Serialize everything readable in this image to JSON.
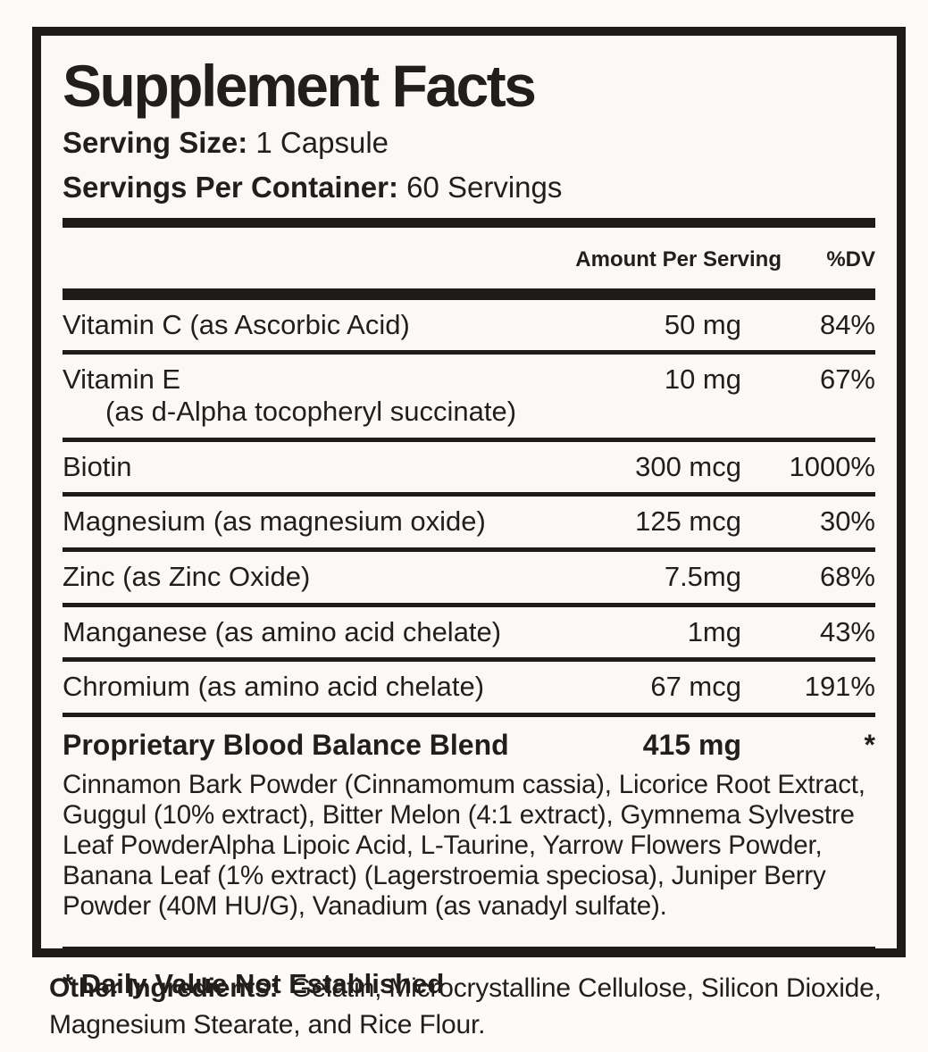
{
  "label": {
    "title": "Supplement Facts",
    "serving_size_label": "Serving Size:",
    "serving_size_value": "1 Capsule",
    "servings_per_container_label": "Servings Per Container:",
    "servings_per_container_value": "60 Servings",
    "columns": {
      "amount_header": "Amount Per Serving",
      "dv_header": "%DV"
    },
    "rows": [
      {
        "name": "Vitamin C (as Ascorbic Acid)",
        "amount": "50 mg",
        "dv": "84%"
      },
      {
        "name": "Vitamin E",
        "sub": "(as d-Alpha tocopheryl succinate)",
        "amount": "10 mg",
        "dv": "67%"
      },
      {
        "name": "Biotin",
        "amount": "300 mcg",
        "dv": "1000%"
      },
      {
        "name": "Magnesium (as magnesium oxide)",
        "amount": "125 mcg",
        "dv": "30%"
      },
      {
        "name": "Zinc (as Zinc Oxide)",
        "amount": "7.5mg",
        "dv": "68%"
      },
      {
        "name": "Manganese (as amino acid chelate)",
        "amount": "1mg",
        "dv": "43%"
      },
      {
        "name": "Chromium (as amino acid chelate)",
        "amount": "67 mcg",
        "dv": "191%"
      }
    ],
    "blend": {
      "name": "Proprietary Blood Balance Blend",
      "amount": "415 mg",
      "dv": "*",
      "description": "Cinnamon Bark Powder (Cinnamomum cassia), Licorice Root Extract, Guggul (10% extract), Bitter Melon (4:1 extract), Gymnema Sylvestre Leaf PowderAlpha Lipoic Acid, L-Taurine, Yarrow Flowers Powder, Banana Leaf (1% extract) (Lagerstroemia speciosa), Juniper Berry Powder (40M HU/G), Vanadium (as vanadyl sulfate)."
    },
    "footnote": "* Daily Value Not Established"
  },
  "other_ingredients": {
    "label": "Other Ingredients:",
    "value": "Gelatin, Microcrystalline Cellulose, Silicon Dioxide, Magnesium Stearate, and Rice Flour."
  },
  "colors": {
    "text": "#221e1d",
    "background": "#fbf9f5",
    "rule": "#1f1b1a"
  }
}
